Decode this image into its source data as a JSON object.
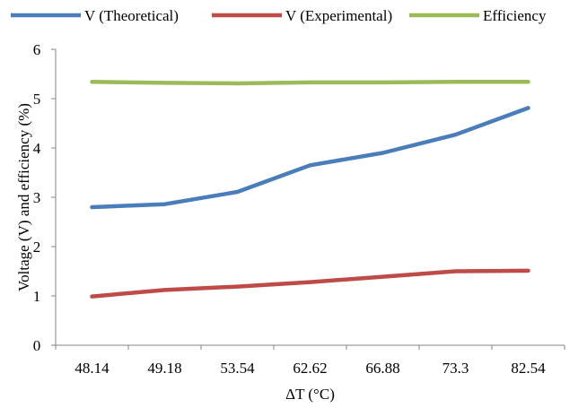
{
  "chart_data": {
    "type": "line",
    "title": "",
    "xlabel": "ΔT (°C)",
    "ylabel": "Voltage (V) and efficiency (%)",
    "categories": [
      "48.14",
      "49.18",
      "53.54",
      "62.62",
      "66.88",
      "73.3",
      "82.54"
    ],
    "ylim": [
      0,
      6
    ],
    "yticks": [
      "0",
      "1",
      "2",
      "3",
      "4",
      "5",
      "6"
    ],
    "grid": false,
    "legend_position": "top",
    "series": [
      {
        "name": "V (Theoretical)",
        "color": "#4a7ebb",
        "values": [
          2.8,
          2.86,
          3.11,
          3.65,
          3.9,
          4.27,
          4.81
        ]
      },
      {
        "name": "V (Experimental)",
        "color": "#be4b48",
        "values": [
          0.99,
          1.12,
          1.19,
          1.28,
          1.39,
          1.5,
          1.51
        ]
      },
      {
        "name": "Efficiency",
        "color": "#9bbb59",
        "values": [
          5.34,
          5.32,
          5.31,
          5.33,
          5.33,
          5.34,
          5.34
        ]
      }
    ]
  }
}
